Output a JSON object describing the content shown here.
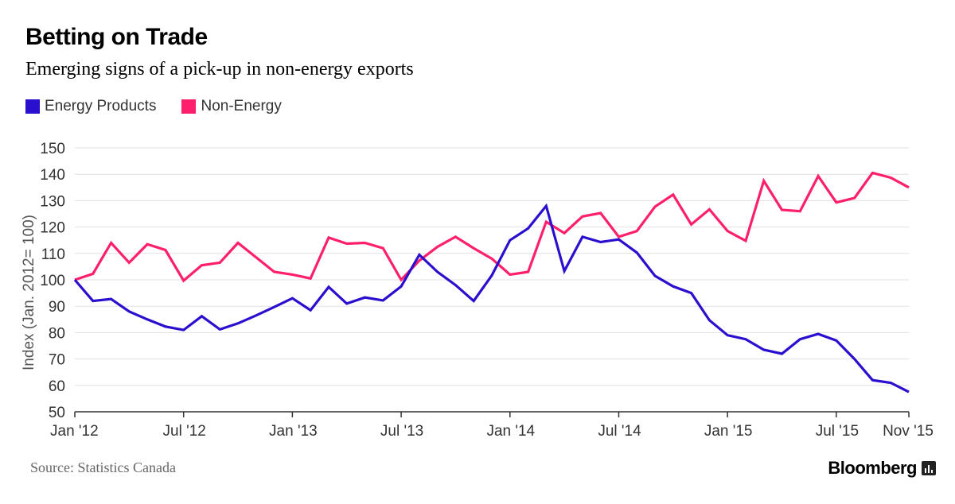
{
  "header": {
    "title": "Betting on Trade",
    "subtitle": "Emerging signs of a pick-up in non-energy exports"
  },
  "footer": {
    "source": "Source: Statistics Canada",
    "brand": "Bloomberg"
  },
  "colors": {
    "energy": "#2a0fcf",
    "non_energy": "#ff1f6c",
    "grid": "#e0e0e0",
    "axis": "#333333"
  },
  "chart_data": {
    "type": "line",
    "title": "Betting on Trade",
    "subtitle": "Emerging signs of a pick-up in non-energy exports",
    "xlabel": "",
    "ylabel": "Index (Jan. 2012= 100)",
    "ylim": [
      50,
      150
    ],
    "yticks": [
      50,
      60,
      70,
      80,
      90,
      100,
      110,
      120,
      130,
      140,
      150
    ],
    "xticks": [
      {
        "label": "Jan '12",
        "month_index": 0
      },
      {
        "label": "Jul '12",
        "month_index": 6
      },
      {
        "label": "Jan '13",
        "month_index": 12
      },
      {
        "label": "Jul '13",
        "month_index": 18
      },
      {
        "label": "Jan '14",
        "month_index": 24
      },
      {
        "label": "Jul '14",
        "month_index": 30
      },
      {
        "label": "Jan '15",
        "month_index": 36
      },
      {
        "label": "Jul '15",
        "month_index": 42
      },
      {
        "label": "Nov '15",
        "month_index": 46
      }
    ],
    "x_range": [
      0,
      46
    ],
    "grid": true,
    "legend_position": "top-left",
    "series": [
      {
        "name": "Energy Products",
        "color": "#2a0fcf",
        "values": [
          100,
          92,
          92.7,
          88,
          85,
          82.3,
          81,
          86.2,
          81.2,
          83.5,
          86.5,
          89.7,
          93,
          88.5,
          97.3,
          91,
          93.3,
          92.2,
          97.5,
          109.5,
          103,
          98,
          92,
          101.7,
          115,
          119.5,
          128,
          103.3,
          116.3,
          114.3,
          115.3,
          110.3,
          101.5,
          97.5,
          95,
          84.7,
          79,
          77.5,
          73.5,
          72,
          77.5,
          79.5,
          77,
          70,
          62,
          61,
          57.5
        ]
      },
      {
        "name": "Non-Energy",
        "color": "#ff1f6c",
        "values": [
          100,
          102.3,
          114,
          106.5,
          113.5,
          111.3,
          99.7,
          105.5,
          106.5,
          114,
          108.5,
          103,
          102,
          100.5,
          116,
          113.7,
          114,
          112,
          100,
          107.3,
          112.5,
          116.3,
          112,
          108,
          102,
          103,
          122,
          117.7,
          124,
          125.3,
          116.3,
          118.5,
          127.7,
          132.3,
          121,
          126.7,
          118.5,
          114.8,
          137.5,
          126.5,
          126,
          139.3,
          129.3,
          131,
          140.5,
          138.7,
          135
        ]
      }
    ]
  }
}
